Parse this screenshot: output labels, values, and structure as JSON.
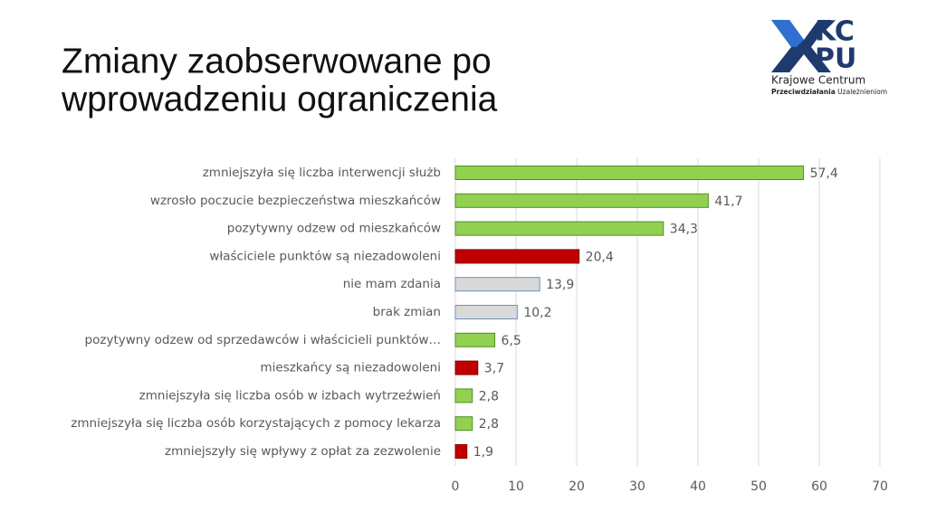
{
  "logo": {
    "mark": [
      "KC",
      "PU"
    ],
    "line1": "Krajowe Centrum",
    "line2_bold": "Przeciwdziałania",
    "line2_rest": "Uzależnieniom"
  },
  "chart_data": {
    "type": "hbar",
    "title": [
      "Zmiany zaobserwowane po",
      "wprowadzeniu ograniczenia"
    ],
    "categories": [
      "zmniejszyła się liczba interwencji służb",
      "wzrosło poczucie bezpieczeństwa mieszkańców",
      "pozytywny odzew od mieszkańców",
      "właściciele punktów są niezadowoleni",
      "nie mam zdania",
      "brak zmian",
      "pozytywny odzew od sprzedawców i właścicieli punktów…",
      "mieszkańcy są niezadowoleni",
      "zmniejszyła się liczba osób w izbach wytrzeźwień",
      "zmniejszyła się liczba osób korzystających z pomocy lekarza",
      "zmniejszyły się wpływy z opłat za zezwolenie"
    ],
    "values": [
      57.4,
      41.7,
      34.3,
      20.4,
      13.9,
      10.2,
      6.5,
      3.7,
      2.8,
      2.8,
      1.9
    ],
    "value_labels": [
      "57,4",
      "41,7",
      "34,3",
      "20,4",
      "13,9",
      "10,2",
      "6,5",
      "3,7",
      "2,8",
      "2,8",
      "1,9"
    ],
    "colors": [
      "#92d050",
      "#92d050",
      "#92d050",
      "#c00000",
      "#d9d9d9",
      "#d9d9d9",
      "#92d050",
      "#c00000",
      "#92d050",
      "#92d050",
      "#c00000"
    ],
    "border_colors": [
      "#4e8f2a",
      "#4e8f2a",
      "#4e8f2a",
      "#8b0000",
      "#6f8fc0",
      "#6f8fc0",
      "#4e8f2a",
      "#8b0000",
      "#4e8f2a",
      "#4e8f2a",
      "#8b0000"
    ],
    "xlim": [
      0,
      70
    ],
    "xticks": [
      0,
      10,
      20,
      30,
      40,
      50,
      60,
      70
    ],
    "grid": true
  }
}
